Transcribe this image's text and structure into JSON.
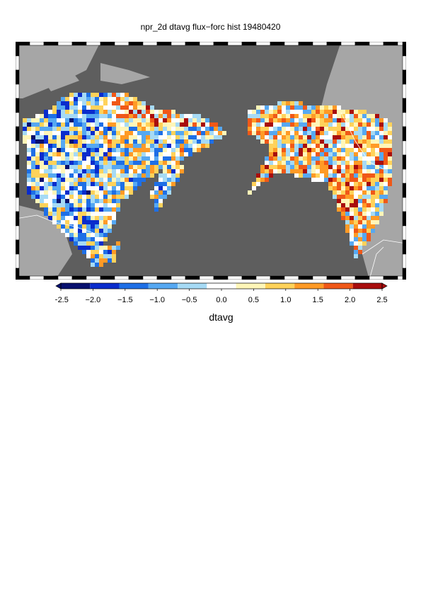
{
  "title": "npr_2d dtavg flux−forc hist 19480420",
  "colorbar": {
    "label": "dtavg",
    "ticks": [
      "−2.5",
      "−2.0",
      "−1.5",
      "−1.0",
      "−0.5",
      "0.0",
      "0.5",
      "1.0",
      "1.5",
      "2.0",
      "2.5"
    ],
    "min": -2.5,
    "max": 2.5,
    "colors": [
      "#08106e",
      "#0a2ccc",
      "#1e6fe6",
      "#56a8f2",
      "#a6daf5",
      "#ffffff",
      "#fff6b8",
      "#ffd25a",
      "#ff9a26",
      "#f05818",
      "#a80d0d"
    ]
  },
  "map": {
    "ocean_color": "#5e5e5e",
    "land_color": "#a6a6a6",
    "border_color": "#ffffff"
  }
}
